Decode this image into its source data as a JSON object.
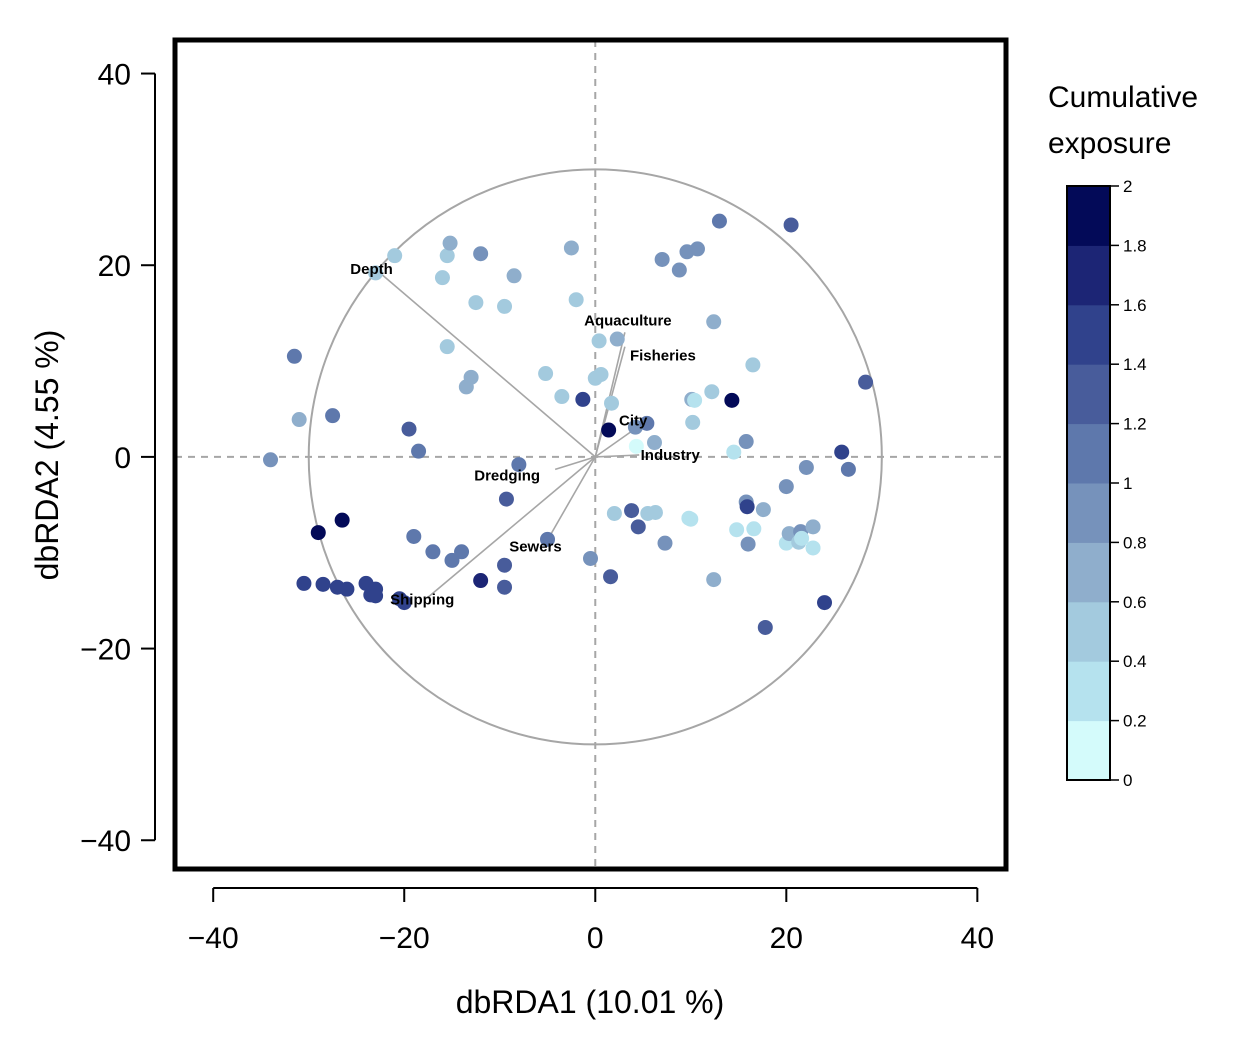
{
  "chart_data": {
    "type": "scatter",
    "xlabel": "dbRDA1 (10.01 %)",
    "ylabel": "dbRDA2 (4.55 %)",
    "xlim": [
      -44,
      43
    ],
    "ylim": [
      -43,
      43.5
    ],
    "x_ticks": [
      -40,
      -20,
      0,
      20,
      40
    ],
    "y_ticks": [
      -40,
      -20,
      0,
      20,
      40
    ],
    "x_tick_labels": [
      "−40",
      "−20",
      "0",
      "20",
      "40"
    ],
    "y_tick_labels": [
      "−40",
      "−20",
      "0",
      "20",
      "40"
    ],
    "grid": false,
    "reference_lines": "dashed lines at x=0 and y=0",
    "circle_radius": 30,
    "vectors": [
      {
        "name": "Depth",
        "x": -22.9,
        "y": 19.5
      },
      {
        "name": "Aquaculture",
        "x": 3.1,
        "y": 13.0
      },
      {
        "name": "Fisheries",
        "x": 3.1,
        "y": 11.5
      },
      {
        "name": "City",
        "x": 4.7,
        "y": 3.3
      },
      {
        "name": "Industry",
        "x": 4.6,
        "y": 0.2
      },
      {
        "name": "Dredging",
        "x": -4.2,
        "y": -1.3
      },
      {
        "name": "Sewers",
        "x": -4.9,
        "y": -8.5
      },
      {
        "name": "Shipping",
        "x": -17.7,
        "y": -14.8
      }
    ],
    "legend": {
      "title": "Cumulative exposure",
      "title_lines": [
        "Cumulative",
        "exposure"
      ],
      "placement": "right",
      "min": 0,
      "max": 2,
      "ticks": [
        "0",
        "0.2",
        "0.4",
        "0.6",
        "0.8",
        "1",
        "1.2",
        "1.4",
        "1.6",
        "1.8",
        "2"
      ],
      "colors": [
        "#d4fbfb",
        "#b5e2ee",
        "#a3cade",
        "#8faecc",
        "#7692bb",
        "#5e78ac",
        "#485c9b",
        "#30428c",
        "#1c2575",
        "#030a58"
      ]
    },
    "points": [
      {
        "x": -34.0,
        "y": -0.3,
        "v": 0.9
      },
      {
        "x": -31.5,
        "y": 10.5,
        "v": 1.0
      },
      {
        "x": -31.0,
        "y": 3.9,
        "v": 0.6
      },
      {
        "x": -30.5,
        "y": -13.2,
        "v": 1.5
      },
      {
        "x": -29.0,
        "y": -7.9,
        "v": 1.9
      },
      {
        "x": -28.5,
        "y": -13.3,
        "v": 1.5
      },
      {
        "x": -27.5,
        "y": 4.3,
        "v": 1.1
      },
      {
        "x": -27.0,
        "y": -13.6,
        "v": 1.5
      },
      {
        "x": -26.5,
        "y": -6.6,
        "v": 1.9
      },
      {
        "x": -26.0,
        "y": -13.8,
        "v": 1.5
      },
      {
        "x": -24.0,
        "y": -13.2,
        "v": 1.5
      },
      {
        "x": -23.5,
        "y": -14.4,
        "v": 1.5
      },
      {
        "x": -23.0,
        "y": -13.8,
        "v": 1.5
      },
      {
        "x": -23.0,
        "y": -14.5,
        "v": 1.5
      },
      {
        "x": -23.0,
        "y": 19.2,
        "v": 0.4
      },
      {
        "x": -21.0,
        "y": 21.0,
        "v": 0.5
      },
      {
        "x": -20.5,
        "y": -14.8,
        "v": 1.5
      },
      {
        "x": -20.0,
        "y": -15.2,
        "v": 1.5
      },
      {
        "x": -19.5,
        "y": 2.9,
        "v": 1.3
      },
      {
        "x": -19.0,
        "y": -8.3,
        "v": 1.1
      },
      {
        "x": -18.5,
        "y": 0.6,
        "v": 1.1
      },
      {
        "x": -17.0,
        "y": -9.9,
        "v": 1.1
      },
      {
        "x": -16.0,
        "y": 18.7,
        "v": 0.4
      },
      {
        "x": -15.5,
        "y": 21.0,
        "v": 0.5
      },
      {
        "x": -15.5,
        "y": 11.5,
        "v": 0.5
      },
      {
        "x": -15.2,
        "y": 22.3,
        "v": 0.7
      },
      {
        "x": -15.0,
        "y": -10.8,
        "v": 1.1
      },
      {
        "x": -14.0,
        "y": -9.9,
        "v": 1.1
      },
      {
        "x": -13.5,
        "y": 7.3,
        "v": 0.7
      },
      {
        "x": -13.0,
        "y": 8.3,
        "v": 0.7
      },
      {
        "x": -12.5,
        "y": 16.1,
        "v": 0.5
      },
      {
        "x": -12.0,
        "y": 21.2,
        "v": 0.8
      },
      {
        "x": -12.0,
        "y": -12.9,
        "v": 1.7
      },
      {
        "x": -9.5,
        "y": 15.7,
        "v": 0.4
      },
      {
        "x": -9.5,
        "y": -11.3,
        "v": 1.2
      },
      {
        "x": -9.5,
        "y": -13.6,
        "v": 1.2
      },
      {
        "x": -9.3,
        "y": -4.4,
        "v": 1.2
      },
      {
        "x": -8.5,
        "y": 18.9,
        "v": 0.7
      },
      {
        "x": -8.0,
        "y": -0.8,
        "v": 1.1
      },
      {
        "x": -5.2,
        "y": 8.7,
        "v": 0.4
      },
      {
        "x": -5.0,
        "y": -8.6,
        "v": 1.1
      },
      {
        "x": -3.5,
        "y": 6.3,
        "v": 0.4
      },
      {
        "x": -2.5,
        "y": 21.8,
        "v": 0.7
      },
      {
        "x": -2.0,
        "y": 16.4,
        "v": 0.5
      },
      {
        "x": -1.3,
        "y": 6.0,
        "v": 1.5
      },
      {
        "x": -0.5,
        "y": -10.6,
        "v": 0.8
      },
      {
        "x": 0.0,
        "y": 8.2,
        "v": 0.4
      },
      {
        "x": 0.4,
        "y": 12.1,
        "v": 0.4
      },
      {
        "x": 0.6,
        "y": 8.6,
        "v": 0.4
      },
      {
        "x": 1.4,
        "y": 2.8,
        "v": 1.9
      },
      {
        "x": 1.6,
        "y": -12.5,
        "v": 1.3
      },
      {
        "x": 1.7,
        "y": 5.6,
        "v": 0.4
      },
      {
        "x": 2.0,
        "y": -5.9,
        "v": 0.5
      },
      {
        "x": 2.3,
        "y": 12.3,
        "v": 0.7
      },
      {
        "x": 3.8,
        "y": -5.6,
        "v": 1.2
      },
      {
        "x": 4.2,
        "y": 3.1,
        "v": 0.8
      },
      {
        "x": 4.3,
        "y": 1.1,
        "v": 0.0
      },
      {
        "x": 4.5,
        "y": -7.3,
        "v": 1.3
      },
      {
        "x": 5.4,
        "y": 3.5,
        "v": 1.1
      },
      {
        "x": 5.5,
        "y": -5.9,
        "v": 0.4
      },
      {
        "x": 6.2,
        "y": 1.5,
        "v": 0.6
      },
      {
        "x": 6.3,
        "y": -5.8,
        "v": 0.4
      },
      {
        "x": 7.0,
        "y": 20.6,
        "v": 0.8
      },
      {
        "x": 7.3,
        "y": -9.0,
        "v": 0.8
      },
      {
        "x": 8.8,
        "y": 19.5,
        "v": 0.9
      },
      {
        "x": 9.6,
        "y": 21.4,
        "v": 0.9
      },
      {
        "x": 9.8,
        "y": -6.4,
        "v": 0.3
      },
      {
        "x": 10.0,
        "y": -6.5,
        "v": 0.3
      },
      {
        "x": 10.1,
        "y": 6.0,
        "v": 0.6
      },
      {
        "x": 10.2,
        "y": 3.6,
        "v": 0.4
      },
      {
        "x": 10.4,
        "y": 5.9,
        "v": 0.3
      },
      {
        "x": 10.7,
        "y": 21.7,
        "v": 0.9
      },
      {
        "x": 12.2,
        "y": 6.8,
        "v": 0.4
      },
      {
        "x": 12.4,
        "y": -12.8,
        "v": 0.7
      },
      {
        "x": 12.4,
        "y": 14.1,
        "v": 0.6
      },
      {
        "x": 13.0,
        "y": 24.6,
        "v": 1.1
      },
      {
        "x": 14.3,
        "y": 5.9,
        "v": 1.9
      },
      {
        "x": 14.5,
        "y": 0.5,
        "v": 0.3
      },
      {
        "x": 14.8,
        "y": -7.6,
        "v": 0.3
      },
      {
        "x": 15.8,
        "y": -4.7,
        "v": 0.8
      },
      {
        "x": 15.8,
        "y": 1.6,
        "v": 0.8
      },
      {
        "x": 15.9,
        "y": -5.2,
        "v": 1.5
      },
      {
        "x": 16.0,
        "y": -9.1,
        "v": 0.8
      },
      {
        "x": 16.5,
        "y": 9.6,
        "v": 0.5
      },
      {
        "x": 16.6,
        "y": -7.5,
        "v": 0.3
      },
      {
        "x": 17.6,
        "y": -5.5,
        "v": 0.7
      },
      {
        "x": 17.8,
        "y": -17.8,
        "v": 1.3
      },
      {
        "x": 20.0,
        "y": -3.1,
        "v": 0.8
      },
      {
        "x": 20.0,
        "y": -9.0,
        "v": 0.3
      },
      {
        "x": 20.3,
        "y": -8.0,
        "v": 0.6
      },
      {
        "x": 20.5,
        "y": 24.2,
        "v": 1.2
      },
      {
        "x": 21.3,
        "y": -8.9,
        "v": 0.5
      },
      {
        "x": 21.5,
        "y": -7.8,
        "v": 0.8
      },
      {
        "x": 21.6,
        "y": -8.5,
        "v": 0.3
      },
      {
        "x": 22.1,
        "y": -1.1,
        "v": 0.9
      },
      {
        "x": 22.8,
        "y": -7.3,
        "v": 0.6
      },
      {
        "x": 22.8,
        "y": -9.5,
        "v": 0.3
      },
      {
        "x": 24.0,
        "y": -15.2,
        "v": 1.4
      },
      {
        "x": 25.8,
        "y": 0.5,
        "v": 1.5
      },
      {
        "x": 26.5,
        "y": -1.3,
        "v": 1.0
      },
      {
        "x": 28.3,
        "y": 7.8,
        "v": 1.3
      }
    ]
  }
}
